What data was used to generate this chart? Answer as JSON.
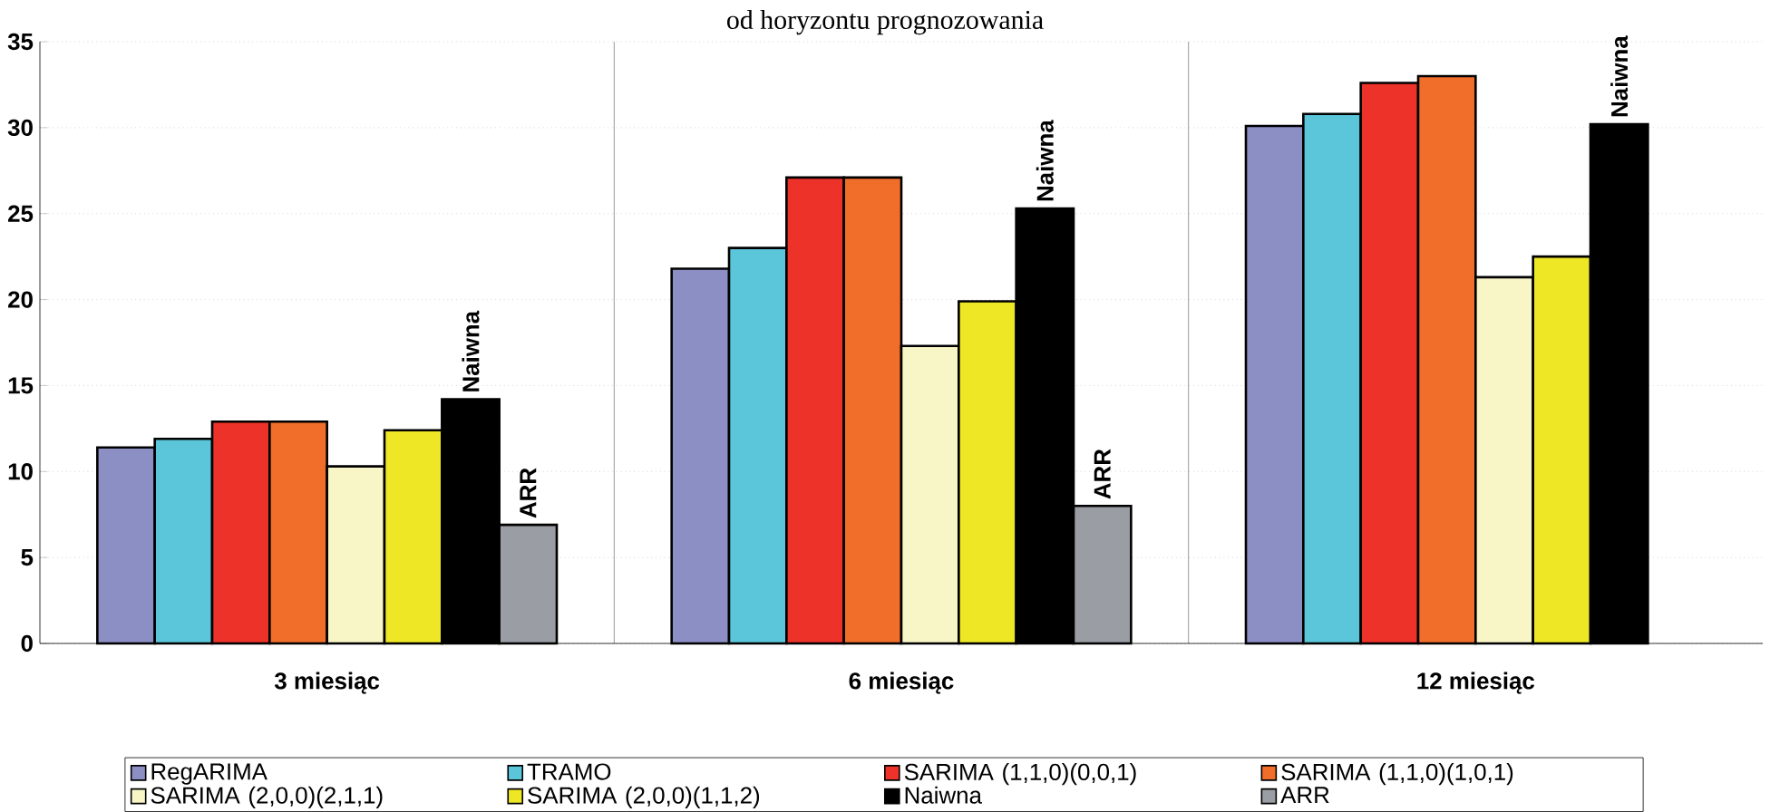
{
  "chart_data": {
    "type": "bar",
    "title": "od horyzontu prognozowania",
    "categories": [
      "3 miesiąc",
      "6 miesiąc",
      "12  miesiąc"
    ],
    "series": [
      {
        "name": "RegARIMA",
        "color": "#8b8fc4",
        "values": [
          11.4,
          21.8,
          30.1
        ]
      },
      {
        "name": "TRAMO",
        "color": "#5bc6da",
        "values": [
          11.9,
          23.0,
          30.8
        ]
      },
      {
        "name": "SARIMA (1,1,0)(0,0,1)",
        "color": "#ec3229",
        "values": [
          12.9,
          27.1,
          32.6
        ]
      },
      {
        "name": "SARIMA (1,1,0)(1,0,1)",
        "color": "#f06e2a",
        "values": [
          12.9,
          27.1,
          33.0
        ]
      },
      {
        "name": "SARIMA (2,0,0)(2,1,1)",
        "color": "#f8f6c6",
        "values": [
          10.3,
          17.3,
          21.3
        ]
      },
      {
        "name": "SARIMA (2,0,0)(1,1,2)",
        "color": "#eee726",
        "values": [
          12.4,
          19.9,
          22.5
        ]
      },
      {
        "name": "Naiwna",
        "color": "#000000",
        "values": [
          14.2,
          25.3,
          30.2
        ]
      },
      {
        "name": "ARR",
        "color": "#9a9da4",
        "values": [
          6.9,
          8.0,
          null
        ]
      }
    ],
    "ylim": [
      0,
      35
    ],
    "yticks": [
      0,
      5,
      10,
      15,
      20,
      25,
      30,
      35
    ],
    "grid": true,
    "legend": "bottom",
    "annotations": [
      "Naiwna",
      "ARR",
      "Naiwna",
      "ARR",
      "Naiwna"
    ]
  }
}
